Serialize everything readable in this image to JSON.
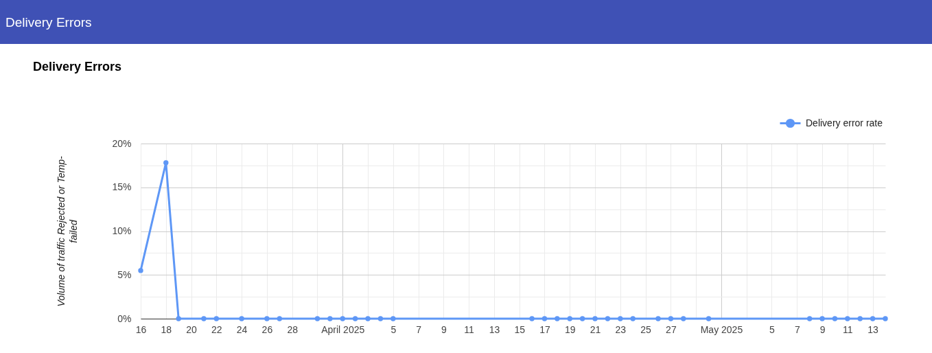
{
  "chart_data": {
    "type": "line",
    "title": "Delivery Errors",
    "ylabel": "Volume of traffic Rejected or Temp-failed",
    "annotations": [
      "Delivery Errors"
    ],
    "series": [
      {
        "name": "Delivery error rate",
        "color": "#5e97f6",
        "x": [
          "2025-03-16",
          "2025-03-18",
          "2025-03-19",
          "2025-03-21",
          "2025-03-22",
          "2025-03-24",
          "2025-03-26",
          "2025-03-27",
          "2025-03-30",
          "2025-03-31",
          "2025-04-01",
          "2025-04-02",
          "2025-04-03",
          "2025-04-04",
          "2025-04-05",
          "2025-04-16",
          "2025-04-17",
          "2025-04-18",
          "2025-04-19",
          "2025-04-20",
          "2025-04-21",
          "2025-04-22",
          "2025-04-23",
          "2025-04-24",
          "2025-04-26",
          "2025-04-27",
          "2025-04-28",
          "2025-04-30",
          "2025-05-08",
          "2025-05-09",
          "2025-05-10",
          "2025-05-11",
          "2025-05-12",
          "2025-05-13",
          "2025-05-14"
        ],
        "values": [
          5.5,
          17.8,
          0,
          0,
          0,
          0,
          0,
          0,
          0,
          0,
          0,
          0,
          0,
          0,
          0,
          0,
          0,
          0,
          0,
          0,
          0,
          0,
          0,
          0,
          0,
          0,
          0,
          0,
          0,
          0,
          0,
          0,
          0,
          0,
          0
        ]
      }
    ],
    "xlim": [
      "2025-03-16",
      "2025-05-14"
    ],
    "xticks": [
      {
        "value": "2025-03-16",
        "label": "16"
      },
      {
        "value": "2025-03-18",
        "label": "18"
      },
      {
        "value": "2025-03-20",
        "label": "20"
      },
      {
        "value": "2025-03-22",
        "label": "22"
      },
      {
        "value": "2025-03-24",
        "label": "24"
      },
      {
        "value": "2025-03-26",
        "label": "26"
      },
      {
        "value": "2025-03-28",
        "label": "28"
      },
      {
        "value": "2025-03-30",
        "label": null
      },
      {
        "value": "2025-04-01",
        "label": "April 2025"
      },
      {
        "value": "2025-04-03",
        "label": null
      },
      {
        "value": "2025-04-05",
        "label": "5"
      },
      {
        "value": "2025-04-07",
        "label": "7"
      },
      {
        "value": "2025-04-09",
        "label": "9"
      },
      {
        "value": "2025-04-11",
        "label": "11"
      },
      {
        "value": "2025-04-13",
        "label": "13"
      },
      {
        "value": "2025-04-15",
        "label": "15"
      },
      {
        "value": "2025-04-17",
        "label": "17"
      },
      {
        "value": "2025-04-19",
        "label": "19"
      },
      {
        "value": "2025-04-21",
        "label": "21"
      },
      {
        "value": "2025-04-23",
        "label": "23"
      },
      {
        "value": "2025-04-25",
        "label": "25"
      },
      {
        "value": "2025-04-27",
        "label": "27"
      },
      {
        "value": "2025-04-29",
        "label": null
      },
      {
        "value": "2025-05-01",
        "label": "May 2025"
      },
      {
        "value": "2025-05-03",
        "label": null
      },
      {
        "value": "2025-05-05",
        "label": "5"
      },
      {
        "value": "2025-05-07",
        "label": "7"
      },
      {
        "value": "2025-05-09",
        "label": "9"
      },
      {
        "value": "2025-05-11",
        "label": "11"
      },
      {
        "value": "2025-05-13",
        "label": "13"
      }
    ],
    "ylim": [
      0,
      20
    ],
    "yticks": [
      {
        "value": 0,
        "label": "0%"
      },
      {
        "value": 2.5,
        "label": null
      },
      {
        "value": 5,
        "label": "5%"
      },
      {
        "value": 7.5,
        "label": null
      },
      {
        "value": 10,
        "label": "10%"
      },
      {
        "value": 12.5,
        "label": null
      },
      {
        "value": 15,
        "label": "15%"
      },
      {
        "value": 17.5,
        "label": null
      },
      {
        "value": 20,
        "label": "20%"
      }
    ],
    "grid": true,
    "legend": "top right",
    "marker": "circle",
    "line_style": "solid"
  }
}
